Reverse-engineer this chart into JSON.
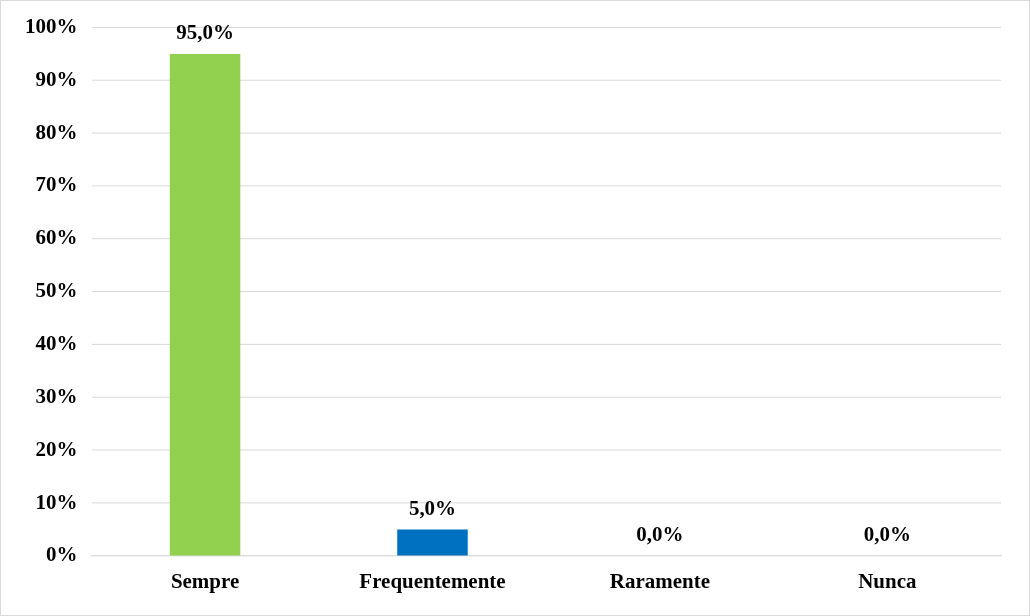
{
  "chart_data": {
    "type": "bar",
    "categories": [
      "Sempre",
      "Frequentemente",
      "Raramente",
      "Nunca"
    ],
    "values": [
      95,
      5,
      0,
      0
    ],
    "colors": [
      "#92d050",
      "#0070c0",
      "#a5a5a5",
      "#ffc000"
    ],
    "value_labels": [
      "95,0%",
      "5,0%",
      "0,0%",
      "0,0%"
    ],
    "ylim": [
      0,
      100
    ],
    "yticks": [
      {
        "value": 0,
        "label": "0%"
      },
      {
        "value": 10,
        "label": "10%"
      },
      {
        "value": 20,
        "label": "20%"
      },
      {
        "value": 30,
        "label": "30%"
      },
      {
        "value": 40,
        "label": "40%"
      },
      {
        "value": 50,
        "label": "50%"
      },
      {
        "value": 60,
        "label": "60%"
      },
      {
        "value": 70,
        "label": "70%"
      },
      {
        "value": 80,
        "label": "80%"
      },
      {
        "value": 90,
        "label": "90%"
      },
      {
        "value": 100,
        "label": "100%"
      }
    ],
    "grid": "y",
    "legend": false
  }
}
